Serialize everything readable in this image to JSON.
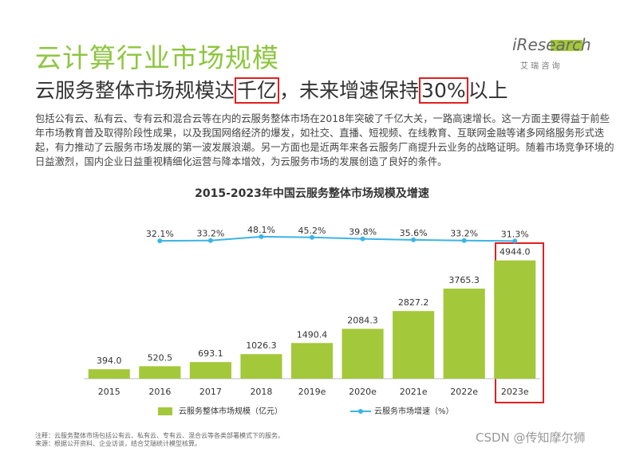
{
  "header": {
    "title": "云计算行业市场规模",
    "subtitle": [
      "云服务整体市场规模达",
      "千亿",
      "，未来增速保持",
      "30%",
      "以上"
    ],
    "logo": "iResearch",
    "logo_sub": "艾 瑞 咨 询",
    "paragraph": "包括公有云、私有云、专有云和混合云等在内的云服务整体市场在2018年突破了千亿大关，一路高速增长。这一方面主要得益于前些年市场教育普及取得阶段性成果，以及我国网络经济的爆发，如社交、直播、短视频、在线教育、互联网金融等诸多网络服务形式迭起，有力推动了云服务市场发展的第一波发展浪潮。另一方面也是近两年来各云服务厂商提升云业务的战略证明。随着市场竞争环境的日益激烈，国内企业日益重视精细化运营与降本增效，为云服务市场的发展创造了良好的条件。"
  },
  "chart_data": {
    "type": "bar",
    "title": "2015-2023年中国云服务整体市场规模及增速",
    "categories": [
      "2015",
      "2016",
      "2017",
      "2018",
      "2019e",
      "2020e",
      "2021e",
      "2022e",
      "2023e"
    ],
    "ylim": [
      0,
      6500
    ],
    "y2lim": [
      -500,
      100
    ],
    "series": [
      {
        "name": "云服务整体市场规模（亿元）",
        "type": "bar",
        "color": "#a3c83a",
        "values": [
          394.0,
          520.5,
          693.1,
          1026.3,
          1490.4,
          2084.3,
          2827.2,
          3765.3,
          4944.0
        ],
        "value_labels": [
          "394.0",
          "520.5",
          "693.1",
          "1026.3",
          "1490.4",
          "2084.3",
          "2827.2",
          "3765.3",
          "4944.0"
        ]
      },
      {
        "name": "云服务市场增速（%）",
        "type": "line",
        "axis": "y2",
        "color": "#3cb4e5",
        "values": [
          null,
          32.1,
          33.2,
          48.1,
          45.2,
          39.8,
          35.6,
          33.2,
          31.3
        ],
        "value_labels": [
          null,
          "32.1%",
          "33.2%",
          "48.1%",
          "45.2%",
          "39.8%",
          "35.6%",
          "33.2%",
          "31.3%"
        ]
      }
    ]
  },
  "notes": [
    "注释：云服务整体市场包括公有云、私有云、专有云、混合云等各类部署模式下的服务。",
    "来源：根据公开资料、企业访谈，结合艾瑞统计模型核算。"
  ],
  "watermark": "CSDN @传知摩尔狮"
}
